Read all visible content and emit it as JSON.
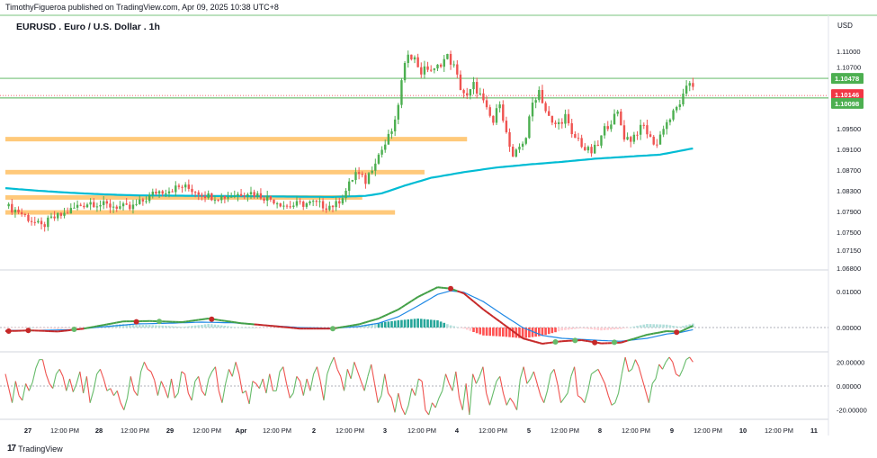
{
  "header": {
    "publisher": "TimothyFigueroa published on TradingView.com, Apr 09, 2025 10:38 UTC+8"
  },
  "symbol_title": "EURUSD . Euro / U.S. Dollar . 1h",
  "currency": "USD",
  "footer": {
    "brand": "TradingView",
    "logo_glyph": "17"
  },
  "colors": {
    "bull": "#26a69a",
    "bull_body": "#4caf50",
    "bear": "#ef5350",
    "ma": "#00bcd4",
    "zone": "#ffb74d",
    "level": "#4caf50",
    "macd_fast": "#43a047",
    "macd_slow": "#1e88e5",
    "osc_up": "#66bb6a",
    "osc_down": "#ef5350",
    "current_price": "#f23645"
  },
  "chart_data": [
    {
      "type": "candlestick",
      "title": "EURUSD . Euro / U.S. Dollar . 1h",
      "ylim": [
        1.068,
        1.117
      ],
      "y_ticks": [
        "1.11000",
        "1.10700",
        "1.09500",
        "1.09100",
        "1.08700",
        "1.08300",
        "1.07900",
        "1.07500",
        "1.07150",
        "1.06800"
      ],
      "y_tick_values": [
        1.11,
        1.107,
        1.095,
        1.091,
        1.087,
        1.083,
        1.079,
        1.075,
        1.0715,
        1.068
      ],
      "x_ticks": [
        "27",
        "12:00 PM",
        "28",
        "12:00 PM",
        "29",
        "12:00 PM",
        "Apr",
        "12:00 PM",
        "2",
        "12:00 PM",
        "3",
        "12:00 PM",
        "4",
        "12:00 PM",
        "5",
        "12:00 PM",
        "8",
        "12:00 PM",
        "9",
        "12:00 PM",
        "10",
        "12:00 PM",
        "11"
      ],
      "x_tick_bold": [
        "27",
        "28",
        "29",
        "Apr",
        "2",
        "3",
        "4",
        "5",
        "8",
        "9",
        "10",
        "11"
      ],
      "price_path": [
        [
          0,
          1.08
        ],
        [
          4,
          1.079
        ],
        [
          8,
          1.0772
        ],
        [
          11,
          1.076
        ],
        [
          14,
          1.0775
        ],
        [
          18,
          1.0785
        ],
        [
          22,
          1.08
        ],
        [
          26,
          1.0808
        ],
        [
          30,
          1.0802
        ],
        [
          34,
          1.08
        ],
        [
          38,
          1.0795
        ],
        [
          42,
          1.081
        ],
        [
          46,
          1.0828
        ],
        [
          50,
          1.0832
        ],
        [
          54,
          1.0838
        ],
        [
          58,
          1.083
        ],
        [
          62,
          1.082
        ],
        [
          66,
          1.0818
        ],
        [
          70,
          1.0822
        ],
        [
          74,
          1.0828
        ],
        [
          78,
          1.082
        ],
        [
          82,
          1.0812
        ],
        [
          86,
          1.08
        ],
        [
          90,
          1.0804
        ],
        [
          94,
          1.0806
        ],
        [
          98,
          1.08
        ],
        [
          101,
          1.0803
        ],
        [
          104,
          1.083
        ],
        [
          107,
          1.0865
        ],
        [
          110,
          1.0848
        ],
        [
          113,
          1.089
        ],
        [
          116,
          1.092
        ],
        [
          119,
          1.096
        ],
        [
          121,
          1.104
        ],
        [
          123,
          1.11
        ],
        [
          125,
          1.1085
        ],
        [
          127,
          1.106
        ],
        [
          129,
          1.1068
        ],
        [
          131,
          1.1062
        ],
        [
          133,
          1.1078
        ],
        [
          135,
          1.109
        ],
        [
          137,
          1.107
        ],
        [
          139,
          1.103
        ],
        [
          141,
          1.101
        ],
        [
          143,
          1.1035
        ],
        [
          145,
          1.1015
        ],
        [
          147,
          1.0985
        ],
        [
          149,
          1.0962
        ],
        [
          151,
          1.1005
        ],
        [
          153,
          1.094
        ],
        [
          155,
          1.089
        ],
        [
          157,
          1.0915
        ],
        [
          159,
          1.0935
        ],
        [
          161,
          1.1
        ],
        [
          163,
          1.1025
        ],
        [
          165,
          1.0985
        ],
        [
          167,
          1.0958
        ],
        [
          169,
          1.096
        ],
        [
          171,
          1.0975
        ],
        [
          173,
          1.0935
        ],
        [
          175,
          1.093
        ],
        [
          177,
          1.091
        ],
        [
          179,
          1.0905
        ],
        [
          181,
          1.0918
        ],
        [
          183,
          1.095
        ],
        [
          185,
          1.0965
        ],
        [
          187,
          1.098
        ],
        [
          189,
          1.0935
        ],
        [
          191,
          1.093
        ],
        [
          193,
          1.0945
        ],
        [
          195,
          1.0955
        ],
        [
          197,
          1.093
        ],
        [
          199,
          1.092
        ],
        [
          201,
          1.0955
        ],
        [
          203,
          1.097
        ],
        [
          205,
          1.099
        ],
        [
          207,
          1.1012
        ],
        [
          209,
          1.104
        ],
        [
          210,
          1.1035
        ]
      ],
      "ma_path": [
        [
          0,
          1.0835
        ],
        [
          10,
          1.083
        ],
        [
          20,
          1.0826
        ],
        [
          30,
          1.0823
        ],
        [
          40,
          1.0821
        ],
        [
          60,
          1.082
        ],
        [
          80,
          1.0819
        ],
        [
          100,
          1.0818
        ],
        [
          110,
          1.082
        ],
        [
          115,
          1.0825
        ],
        [
          122,
          1.084
        ],
        [
          130,
          1.0855
        ],
        [
          140,
          1.0866
        ],
        [
          150,
          1.0875
        ],
        [
          160,
          1.0881
        ],
        [
          170,
          1.0886
        ],
        [
          180,
          1.0892
        ],
        [
          190,
          1.0896
        ],
        [
          200,
          1.09
        ],
        [
          210,
          1.0912
        ]
      ],
      "price_labels": [
        {
          "text": "1.10478",
          "value": 1.10478,
          "color": "#4caf50"
        },
        {
          "text": "1.10146",
          "value": 1.10146,
          "color": "#f23645"
        },
        {
          "text": "1.10098",
          "value": 1.10098,
          "color": "#4caf50"
        }
      ],
      "horizontal_levels": [
        1.10478,
        1.10098
      ],
      "current_price_line": 1.10146,
      "zones": [
        {
          "value": 1.093,
          "bar_from": 0,
          "bar_to": 141
        },
        {
          "value": 1.0866,
          "bar_from": 0,
          "bar_to": 128
        },
        {
          "value": 1.0817,
          "bar_from": 0,
          "bar_to": 109
        },
        {
          "value": 1.0788,
          "bar_from": 0,
          "bar_to": 119
        }
      ]
    },
    {
      "type": "line",
      "name": "macd",
      "y_ticks": [
        "0.01000",
        "0.00000"
      ],
      "y_tick_values": [
        0.01,
        0.0
      ],
      "ylim": [
        -0.0065,
        0.0155
      ],
      "fast_path": [
        [
          0,
          -0.001
        ],
        [
          8,
          -0.0008
        ],
        [
          16,
          -0.0011
        ],
        [
          24,
          -0.0003
        ],
        [
          36,
          0.0017
        ],
        [
          44,
          0.0018
        ],
        [
          54,
          0.0015
        ],
        [
          62,
          0.0025
        ],
        [
          72,
          0.0012
        ],
        [
          82,
          0.0004
        ],
        [
          90,
          -0.0003
        ],
        [
          100,
          -0.0003
        ],
        [
          108,
          0.0009
        ],
        [
          114,
          0.0025
        ],
        [
          120,
          0.005
        ],
        [
          126,
          0.0085
        ],
        [
          132,
          0.0112
        ],
        [
          136,
          0.0108
        ],
        [
          140,
          0.0095
        ],
        [
          146,
          0.005
        ],
        [
          152,
          0.001
        ],
        [
          158,
          -0.003
        ],
        [
          164,
          -0.0045
        ],
        [
          170,
          -0.0038
        ],
        [
          176,
          -0.0035
        ],
        [
          182,
          -0.0044
        ],
        [
          188,
          -0.0042
        ],
        [
          196,
          -0.002
        ],
        [
          202,
          -0.001
        ],
        [
          206,
          -0.0012
        ],
        [
          210,
          0.0005
        ]
      ],
      "slow_path": [
        [
          0,
          -0.0008
        ],
        [
          10,
          -0.0008
        ],
        [
          20,
          -0.0006
        ],
        [
          30,
          0.0002
        ],
        [
          40,
          0.001
        ],
        [
          50,
          0.0012
        ],
        [
          60,
          0.0015
        ],
        [
          70,
          0.0013
        ],
        [
          80,
          0.0006
        ],
        [
          90,
          0.0
        ],
        [
          100,
          -0.0002
        ],
        [
          108,
          0.0003
        ],
        [
          114,
          0.0012
        ],
        [
          120,
          0.003
        ],
        [
          126,
          0.006
        ],
        [
          132,
          0.0092
        ],
        [
          136,
          0.0102
        ],
        [
          140,
          0.0098
        ],
        [
          146,
          0.0072
        ],
        [
          152,
          0.0035
        ],
        [
          158,
          0.0
        ],
        [
          164,
          -0.0022
        ],
        [
          170,
          -0.003
        ],
        [
          176,
          -0.0033
        ],
        [
          182,
          -0.0036
        ],
        [
          188,
          -0.0038
        ],
        [
          196,
          -0.003
        ],
        [
          202,
          -0.0018
        ],
        [
          206,
          -0.0014
        ],
        [
          210,
          -0.0006
        ]
      ],
      "markers": [
        {
          "x": 1,
          "y": -0.001,
          "color": "#c62828"
        },
        {
          "x": 7,
          "y": -0.0008,
          "color": "#c62828"
        },
        {
          "x": 21,
          "y": -0.0005,
          "color": "#66bb6a"
        },
        {
          "x": 40,
          "y": 0.0016,
          "color": "#c62828"
        },
        {
          "x": 47,
          "y": 0.0017,
          "color": "#66bb6a"
        },
        {
          "x": 63,
          "y": 0.0023,
          "color": "#c62828"
        },
        {
          "x": 100,
          "y": -0.0003,
          "color": "#66bb6a"
        },
        {
          "x": 136,
          "y": 0.0108,
          "color": "#c62828"
        },
        {
          "x": 168,
          "y": -0.004,
          "color": "#66bb6a"
        },
        {
          "x": 174,
          "y": -0.0036,
          "color": "#66bb6a"
        },
        {
          "x": 180,
          "y": -0.0042,
          "color": "#c62828"
        },
        {
          "x": 186,
          "y": -0.0041,
          "color": "#66bb6a"
        },
        {
          "x": 205,
          "y": -0.0013,
          "color": "#c62828"
        }
      ]
    },
    {
      "type": "line",
      "name": "oscillator",
      "y_ticks": [
        "20.00000",
        "0.00000",
        "-20.00000"
      ],
      "y_tick_values": [
        20,
        0,
        -20
      ],
      "ylim": [
        -27,
        27
      ],
      "values": [
        10,
        -2,
        -14,
        4,
        -8,
        -12,
        2,
        -4,
        3,
        15,
        22,
        22,
        10,
        2,
        -2,
        10,
        14,
        8,
        -4,
        6,
        -5,
        2,
        12,
        -6,
        8,
        -14,
        -4,
        10,
        14,
        6,
        -4,
        -2,
        -8,
        -4,
        -14,
        -20,
        -10,
        8,
        -4,
        -8,
        12,
        20,
        14,
        12,
        5,
        -8,
        4,
        -2,
        -10,
        6,
        -10,
        -6,
        12,
        10,
        -6,
        -12,
        4,
        8,
        -4,
        -8,
        6,
        12,
        16,
        -4,
        -14,
        2,
        14,
        8,
        20,
        10,
        -6,
        -4,
        -15,
        4,
        2,
        -2,
        6,
        -6,
        10,
        -4,
        -4,
        12,
        16,
        2,
        -10,
        -6,
        8,
        4,
        -8,
        6,
        -4,
        10,
        16,
        4,
        -12,
        10,
        18,
        24,
        14,
        8,
        -4,
        14,
        6,
        20,
        12,
        4,
        -4,
        8,
        18,
        2,
        -14,
        -8,
        10,
        -6,
        -10,
        -22,
        -6,
        -18,
        -24,
        -16,
        -2,
        -8,
        6,
        4,
        -20,
        -24,
        -14,
        -18,
        -10,
        -4,
        10,
        2,
        -4,
        12,
        -10,
        -20,
        2,
        -24,
        10,
        2,
        8,
        16,
        -6,
        -16,
        -6,
        4,
        8,
        -6,
        -16,
        -10,
        -14,
        -20,
        6,
        16,
        2,
        6,
        12,
        2,
        -8,
        -14,
        -4,
        10,
        14,
        2,
        -14,
        -10,
        -6,
        8,
        16,
        -8,
        -10,
        -14,
        -4,
        10,
        12,
        14,
        8,
        2,
        -8,
        -16,
        -14,
        -6,
        10,
        24,
        12,
        14,
        22,
        16,
        6,
        -4,
        -14,
        2,
        6,
        18,
        14,
        20,
        24,
        20,
        10,
        8,
        14,
        22,
        24,
        20
      ]
    }
  ]
}
